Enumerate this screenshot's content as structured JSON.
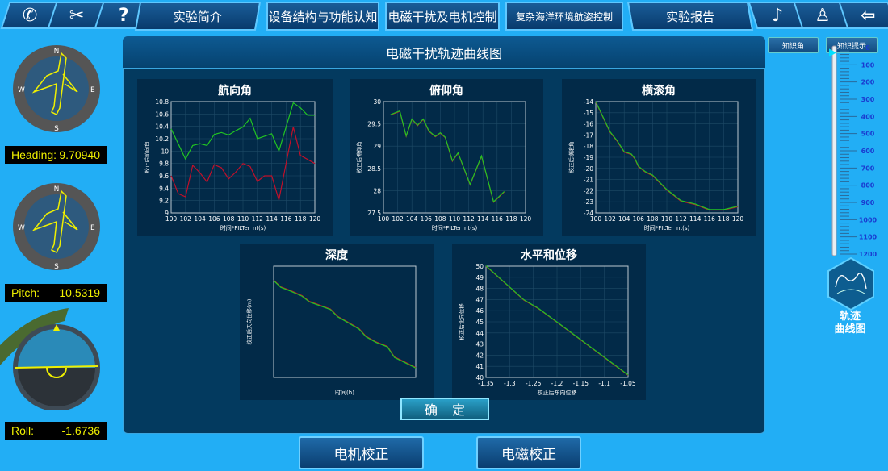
{
  "nav": {
    "icons": [
      "phone-icon",
      "tools-icon",
      "help-icon"
    ],
    "help_glyph": "?",
    "tabs": [
      {
        "label": "实验简介"
      },
      {
        "label": "设备结构与功能认知"
      },
      {
        "label": "电磁干扰及电机控制"
      },
      {
        "label": "复杂海洋环境航姿控制"
      },
      {
        "label": "实验报告"
      }
    ],
    "right_icons": [
      "music-icon",
      "user-icon",
      "exit-icon"
    ]
  },
  "panel": {
    "title": "电磁干扰轨迹曲线图",
    "confirm": "确定"
  },
  "knowledge": {
    "angle": "知识角",
    "hint": "知识提示"
  },
  "gauges": {
    "heading": {
      "label": "Heading:",
      "value": "9.70940"
    },
    "pitch": {
      "label": "Pitch:",
      "value": "10.5319"
    },
    "roll": {
      "label": "Roll:",
      "value": "-1.6736"
    }
  },
  "depth_scale": {
    "labels": [
      "0",
      "100",
      "200",
      "300",
      "400",
      "500",
      "600",
      "700",
      "800",
      "900",
      "1000",
      "1100",
      "1200"
    ],
    "marker_value": 30
  },
  "trajectory_button": {
    "line1": "轨迹",
    "line2": "曲线图"
  },
  "bottom": {
    "motor": "电机校正",
    "em": "电磁校正"
  },
  "colors": {
    "series_a": "#22c422",
    "series_b": "#c0102a",
    "bg": "#22aef5",
    "panel": "#033a5f"
  },
  "chart_data": [
    {
      "type": "line",
      "title": "航向角",
      "xlabel": "时间*FILTer_nt(s)",
      "ylabel": "校正后航向角",
      "xlim": [
        100,
        120
      ],
      "ylim": [
        9,
        10.8
      ],
      "xticks": [
        100,
        102,
        104,
        106,
        108,
        110,
        112,
        114,
        116,
        118,
        120
      ],
      "yticks": [
        9,
        9.2,
        9.4,
        9.6,
        9.8,
        10,
        10.2,
        10.4,
        10.6,
        10.8
      ],
      "grid": true,
      "series": [
        {
          "color": "#22c422",
          "x": [
            100,
            102,
            103,
            104,
            105,
            106,
            107,
            108,
            109,
            110,
            111,
            112,
            114,
            115,
            117,
            118,
            119,
            120
          ],
          "y": [
            10.36,
            9.87,
            10.09,
            10.12,
            10.09,
            10.27,
            10.3,
            10.26,
            10.33,
            10.39,
            10.53,
            10.2,
            10.28,
            10.0,
            10.78,
            10.7,
            10.58,
            10.58
          ]
        },
        {
          "color": "#c0102a",
          "x": [
            100,
            101,
            102,
            103,
            104,
            105,
            106,
            107,
            108,
            109,
            110,
            111,
            112,
            113,
            114,
            115,
            117,
            118,
            120
          ],
          "y": [
            9.6,
            9.31,
            9.26,
            9.77,
            9.65,
            9.5,
            9.78,
            9.73,
            9.55,
            9.66,
            9.8,
            9.75,
            9.51,
            9.6,
            9.6,
            9.21,
            10.39,
            9.93,
            9.8
          ]
        }
      ]
    },
    {
      "type": "line",
      "title": "俯仰角",
      "xlabel": "时间*FILTer_nt(s)",
      "ylabel": "校正后俯仰角",
      "xlim": [
        100,
        120
      ],
      "ylim": [
        27.5,
        30
      ],
      "xticks": [
        100,
        102,
        104,
        106,
        108,
        110,
        112,
        114,
        116,
        118,
        120
      ],
      "yticks": [
        27.5,
        28,
        28.5,
        29,
        29.5,
        30
      ],
      "grid": true,
      "series": [
        {
          "color": "#c0102a",
          "x": [
            101,
            102.3,
            103.2,
            104,
            104.8,
            105.6,
            106.4,
            107.3,
            108,
            108.7,
            109.7,
            110.5,
            112.2,
            113.8,
            115.5,
            117
          ],
          "y": [
            29.7,
            29.78,
            29.22,
            29.6,
            29.46,
            29.6,
            29.33,
            29.21,
            29.29,
            29.19,
            28.66,
            28.84,
            28.13,
            28.77,
            27.74,
            27.97
          ]
        },
        {
          "color": "#22c422",
          "x": [
            101,
            102.3,
            103.2,
            104,
            104.8,
            105.6,
            106.4,
            107.3,
            108,
            108.7,
            109.7,
            110.5,
            112.2,
            113.8,
            115.5,
            117
          ],
          "y": [
            29.71,
            29.79,
            29.23,
            29.61,
            29.47,
            29.61,
            29.34,
            29.22,
            29.3,
            29.2,
            28.67,
            28.85,
            28.14,
            28.78,
            27.75,
            27.98
          ]
        }
      ]
    },
    {
      "type": "line",
      "title": "横滚角",
      "xlabel": "时间*FILTer_nt(s)",
      "ylabel": "校正后横滚角",
      "xlim": [
        100,
        120
      ],
      "ylim": [
        -24,
        -14
      ],
      "xticks": [
        100,
        102,
        104,
        106,
        108,
        110,
        112,
        114,
        116,
        118,
        120
      ],
      "yticks": [
        -24,
        -23,
        -22,
        -21,
        -20,
        -19,
        -18,
        -17,
        -16,
        -15,
        -14
      ],
      "grid": true,
      "series": [
        {
          "color": "#c0102a",
          "x": [
            100,
            102,
            103,
            104,
            105,
            105.5,
            106,
            107,
            108,
            110,
            112,
            114,
            116,
            117,
            118,
            120
          ],
          "y": [
            -14.05,
            -16.75,
            -17.55,
            -18.55,
            -18.75,
            -19.15,
            -19.85,
            -20.35,
            -20.65,
            -21.95,
            -22.95,
            -23.25,
            -23.75,
            -23.75,
            -23.75,
            -23.45
          ]
        },
        {
          "color": "#22c422",
          "x": [
            100,
            102,
            103,
            104,
            105,
            105.5,
            106,
            107,
            108,
            110,
            112,
            114,
            116,
            117,
            118,
            120
          ],
          "y": [
            -14,
            -16.7,
            -17.5,
            -18.5,
            -18.7,
            -19.1,
            -19.8,
            -20.3,
            -20.6,
            -21.9,
            -22.9,
            -23.2,
            -23.7,
            -23.7,
            -23.7,
            -23.4
          ]
        }
      ]
    },
    {
      "type": "line",
      "title": "深度",
      "xlabel": "时间(h)",
      "ylabel": "校正后天向位移(m)",
      "xlim": [
        0,
        100
      ],
      "ylim": [
        0,
        100
      ],
      "xticks": [],
      "yticks": [],
      "grid": false,
      "series": [
        {
          "color": "#c0102a",
          "x": [
            0,
            5,
            12,
            20,
            25,
            40,
            45,
            52,
            60,
            65,
            72,
            80,
            85,
            100
          ],
          "y": [
            87.5,
            81.5,
            78,
            73.5,
            68.5,
            61.5,
            55,
            50,
            44,
            37,
            32,
            28,
            18.5,
            9
          ]
        },
        {
          "color": "#22c422",
          "x": [
            0,
            5,
            12,
            20,
            25,
            40,
            45,
            52,
            60,
            65,
            72,
            80,
            85,
            100
          ],
          "y": [
            87,
            81,
            77.5,
            73,
            68,
            61,
            54.5,
            49.5,
            43.5,
            36.5,
            31.5,
            27.5,
            18,
            8.5
          ]
        }
      ]
    },
    {
      "type": "line",
      "title": "水平和位移",
      "xlabel": "校正后东向位移",
      "ylabel": "校正后北向位移",
      "xlim": [
        -1.35,
        -1.05
      ],
      "ylim": [
        40,
        50
      ],
      "xticks": [
        -1.35,
        -1.3,
        -1.25,
        -1.2,
        -1.15,
        -1.1,
        -1.05
      ],
      "yticks": [
        40,
        41,
        42,
        43,
        44,
        45,
        46,
        47,
        48,
        49,
        50
      ],
      "grid": true,
      "series": [
        {
          "color": "#c0102a",
          "x": [
            -1.35,
            -1.27,
            -1.24,
            -1.2,
            -1.05
          ],
          "y": [
            50,
            46.95,
            46.2,
            44.95,
            40.2
          ]
        },
        {
          "color": "#22c422",
          "x": [
            -1.35,
            -1.27,
            -1.24,
            -1.2,
            -1.05
          ],
          "y": [
            50.03,
            46.98,
            46.23,
            44.98,
            40.23
          ]
        }
      ]
    }
  ]
}
